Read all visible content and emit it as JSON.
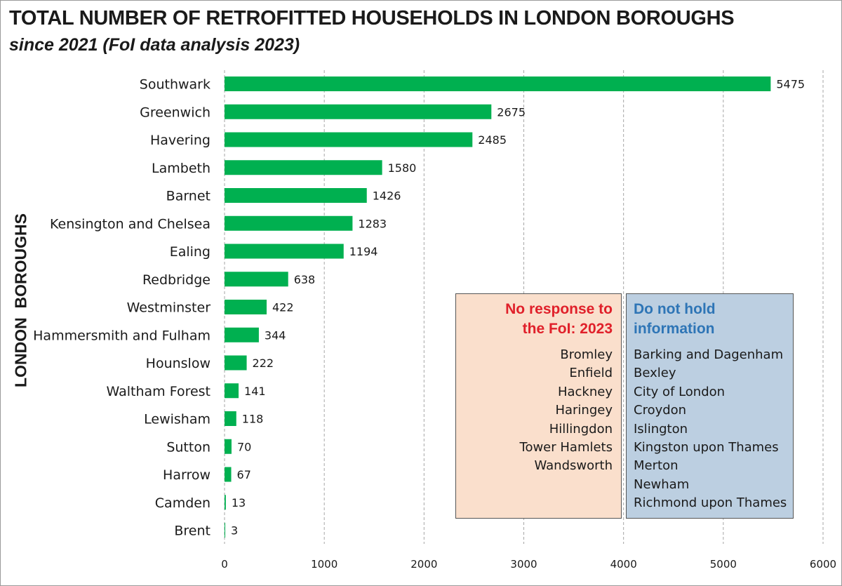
{
  "chart_data": {
    "type": "bar",
    "orientation": "horizontal",
    "title": "TOTAL NUMBER OF RETROFITTED HOUSEHOLDS IN LONDON BOROUGHS",
    "subtitle": "since 2021 (FoI data analysis 2023)",
    "ylabel": "LONDON  BOROUGHS",
    "xlabel": "",
    "categories": [
      "Southwark",
      "Greenwich",
      "Havering",
      "Lambeth",
      "Barnet",
      "Kensington and Chelsea",
      "Ealing",
      "Redbridge",
      "Westminster",
      "Hammersmith and Fulham",
      "Hounslow",
      "Waltham Forest",
      "Lewisham",
      "Sutton",
      "Harrow",
      "Camden",
      "Brent"
    ],
    "values": [
      5475,
      2675,
      2485,
      1580,
      1426,
      1283,
      1194,
      638,
      422,
      344,
      222,
      141,
      118,
      70,
      67,
      13,
      3
    ],
    "xlim": [
      0,
      6000
    ],
    "xticks": [
      0,
      1000,
      2000,
      3000,
      4000,
      5000,
      6000
    ],
    "grid": "vertical dashed",
    "bar_color": "#00b050"
  },
  "annotations": {
    "no_response": {
      "title": "No response to the FoI: 2023",
      "title_lines": [
        "No response to",
        "the FoI: 2023"
      ],
      "color": "#e0202a",
      "background": "#fadfcc",
      "items": [
        "Bromley",
        "Enfield",
        "Hackney",
        "Haringey",
        "Hillingdon",
        "Tower Hamlets",
        "Wandsworth"
      ]
    },
    "do_not_hold": {
      "title": "Do not hold information",
      "title_lines": [
        "Do not hold",
        "information"
      ],
      "color": "#2e75b6",
      "background": "#bccfe1",
      "items": [
        "Barking and Dagenham",
        "Bexley",
        "City of London",
        "Croydon",
        "Islington",
        "Kingston upon Thames",
        "Merton",
        "Newham",
        "Richmond upon Thames"
      ]
    }
  }
}
